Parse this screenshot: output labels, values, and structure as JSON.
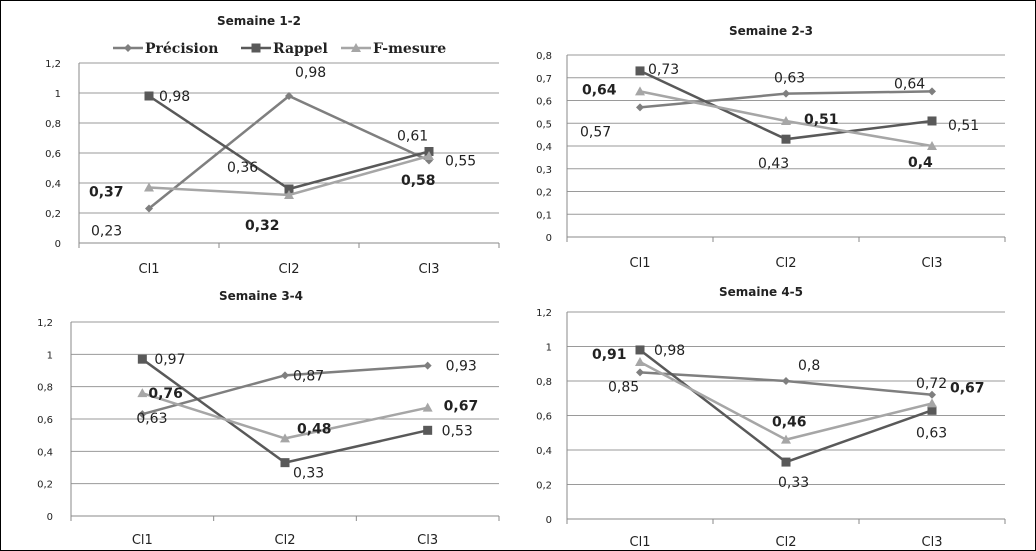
{
  "legend": {
    "entries": [
      {
        "name": "Précision",
        "color": "#7f7f7f",
        "marker": "diamond"
      },
      {
        "name": "Rappel",
        "color": "#595959",
        "marker": "square"
      },
      {
        "name": "F-mesure",
        "color": "#a6a6a6",
        "marker": "triangle"
      }
    ]
  },
  "chart_data": [
    {
      "type": "line",
      "title": "Semaine 1-2",
      "categories": [
        "Cl1",
        "Cl2",
        "Cl3"
      ],
      "ylim": [
        0,
        1.2
      ],
      "yticks": [
        "0",
        "0,2",
        "0,4",
        "0,6",
        "0,8",
        "1",
        "1,2"
      ],
      "grid": true,
      "series": [
        {
          "name": "Précision",
          "values": [
            0.23,
            0.98,
            0.55
          ],
          "labels": [
            "0,23",
            "0,98",
            "0,55"
          ]
        },
        {
          "name": "Rappel",
          "values": [
            0.98,
            0.36,
            0.61
          ],
          "labels": [
            "0,98",
            "0,36",
            "0,61"
          ]
        },
        {
          "name": "F-mesure",
          "values": [
            0.37,
            0.32,
            0.58
          ],
          "labels": [
            "0,37",
            "0,32",
            "0,58"
          ]
        }
      ]
    },
    {
      "type": "line",
      "title": "Semaine 2-3",
      "categories": [
        "Cl1",
        "Cl2",
        "Cl3"
      ],
      "ylim": [
        0,
        0.8
      ],
      "yticks": [
        "0",
        "0,1",
        "0,2",
        "0,3",
        "0,4",
        "0,5",
        "0,6",
        "0,7",
        "0,8"
      ],
      "grid": true,
      "series": [
        {
          "name": "Précision",
          "values": [
            0.57,
            0.63,
            0.64
          ],
          "labels": [
            "0,57",
            "0,63",
            "0,64"
          ]
        },
        {
          "name": "Rappel",
          "values": [
            0.73,
            0.43,
            0.51
          ],
          "labels": [
            "0,73",
            "0,43",
            "0,51"
          ]
        },
        {
          "name": "F-mesure",
          "values": [
            0.64,
            0.51,
            0.4
          ],
          "labels": [
            "0,64",
            "0,51",
            "0,4"
          ]
        }
      ]
    },
    {
      "type": "line",
      "title": "Semaine 3-4",
      "categories": [
        "Cl1",
        "Cl2",
        "Cl3"
      ],
      "ylim": [
        0,
        1.2
      ],
      "yticks": [
        "0",
        "0,2",
        "0,4",
        "0,6",
        "0,8",
        "1",
        "1,2"
      ],
      "grid": true,
      "series": [
        {
          "name": "Précision",
          "values": [
            0.63,
            0.87,
            0.93
          ],
          "labels": [
            "0,63",
            "0,87",
            "0,93"
          ]
        },
        {
          "name": "Rappel",
          "values": [
            0.97,
            0.33,
            0.53
          ],
          "labels": [
            "0,97",
            "0,33",
            "0,53"
          ]
        },
        {
          "name": "F-mesure",
          "values": [
            0.76,
            0.48,
            0.67
          ],
          "labels": [
            "0,76",
            "0,48",
            "0,67"
          ]
        }
      ]
    },
    {
      "type": "line",
      "title": "Semaine 4-5",
      "categories": [
        "Cl1",
        "Cl2",
        "Cl3"
      ],
      "ylim": [
        0,
        1.2
      ],
      "yticks": [
        "0",
        "0,2",
        "0,4",
        "0,6",
        "0,8",
        "1",
        "1,2"
      ],
      "grid": true,
      "series": [
        {
          "name": "Précision",
          "values": [
            0.85,
            0.8,
            0.72
          ],
          "labels": [
            "0,85",
            "0,8",
            "0,72"
          ]
        },
        {
          "name": "Rappel",
          "values": [
            0.98,
            0.33,
            0.63
          ],
          "labels": [
            "0,98",
            "0,33",
            "0,63"
          ]
        },
        {
          "name": "F-mesure",
          "values": [
            0.91,
            0.46,
            0.67
          ],
          "labels": [
            "0,91",
            "0,46",
            "0,67"
          ]
        }
      ]
    }
  ]
}
